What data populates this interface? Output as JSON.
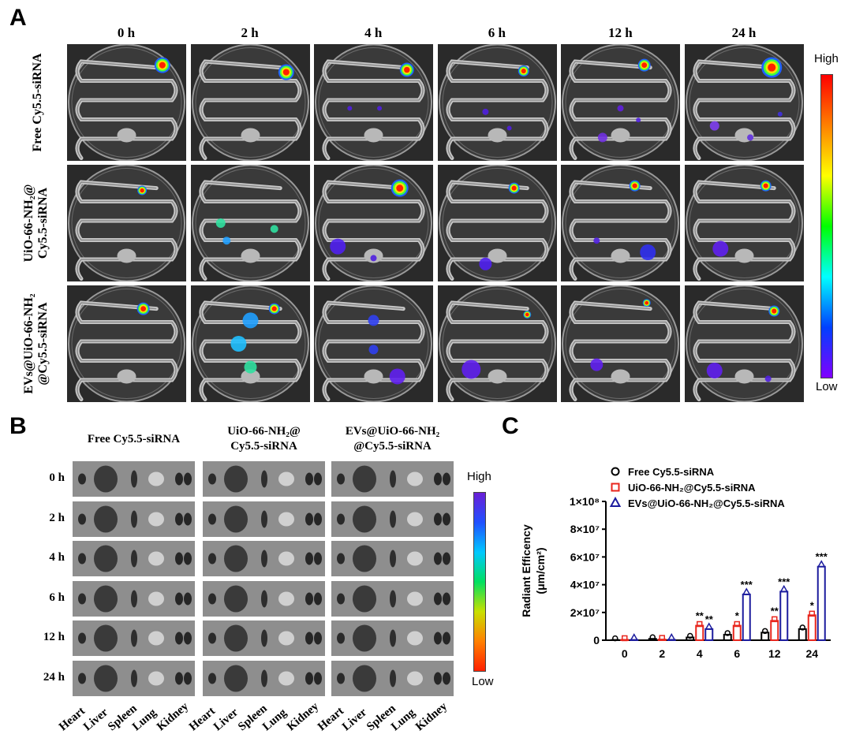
{
  "panel_a": {
    "letter": "A",
    "time_points": [
      "0 h",
      "2 h",
      "4 h",
      "6 h",
      "12 h",
      "24 h"
    ],
    "rows": [
      {
        "label_lines": [
          "Free Cy5.5-siRNA"
        ]
      },
      {
        "label_lines": [
          "UiO-66-NH₂@",
          "Cy5.5-siRNA"
        ]
      },
      {
        "label_lines": [
          "EVs@UiO-66-NH₂",
          "@Cy5.5-siRNA"
        ]
      }
    ],
    "colorbar": {
      "high": "High",
      "low": "Low"
    }
  },
  "panel_b": {
    "letter": "B",
    "groups": [
      {
        "label_lines": [
          "Free Cy5.5-siRNA"
        ]
      },
      {
        "label_lines": [
          "UiO-66-NH₂@",
          "Cy5.5-siRNA"
        ]
      },
      {
        "label_lines": [
          "EVs@UiO-66-NH₂",
          "@Cy5.5-siRNA"
        ]
      }
    ],
    "time_points": [
      "0 h",
      "2 h",
      "4 h",
      "6 h",
      "12 h",
      "24 h"
    ],
    "organs": [
      "Heart",
      "Liver",
      "Spleen",
      "Lung",
      "Kidney"
    ],
    "colorbar": {
      "high": "High",
      "low": "Low"
    }
  },
  "panel_c": {
    "letter": "C",
    "chart_data": {
      "type": "bar",
      "categories": [
        "0",
        "2",
        "4",
        "6",
        "12",
        "24"
      ],
      "ylabel_lines": [
        "Radiant Efficency",
        "(μm/cm²)"
      ],
      "ylim": [
        0,
        100000000
      ],
      "yticks": [
        "0",
        "2×10⁷",
        "4×10⁷",
        "6×10⁷",
        "8×10⁷",
        "1×10⁸"
      ],
      "series": [
        {
          "name": "Free Cy5.5-siRNA",
          "color": "#000000",
          "marker": "circle",
          "values": [
            200000,
            1000000,
            2000000,
            4000000,
            5500000,
            8000000
          ]
        },
        {
          "name": "UiO-66-NH₂@Cy5.5-siRNA",
          "color": "#e8261d",
          "marker": "square",
          "values": [
            300000,
            500000,
            10500000,
            10500000,
            14000000,
            18000000
          ]
        },
        {
          "name": "EVs@UiO-66-NH₂@Cy5.5-siRNA",
          "color": "#1c1c9e",
          "marker": "triangle",
          "values": [
            200000,
            300000,
            8000000,
            33000000,
            35000000,
            53000000
          ]
        }
      ],
      "significance": [
        {
          "category": "4",
          "series": 1,
          "text": "**"
        },
        {
          "category": "4",
          "series": 2,
          "text": "**"
        },
        {
          "category": "6",
          "series": 1,
          "text": "*"
        },
        {
          "category": "6",
          "series": 2,
          "text": "***"
        },
        {
          "category": "12",
          "series": 1,
          "text": "**"
        },
        {
          "category": "12",
          "series": 2,
          "text": "***"
        },
        {
          "category": "24",
          "series": 1,
          "text": "*"
        },
        {
          "category": "24",
          "series": 2,
          "text": "***"
        }
      ],
      "legend": "top-left"
    }
  }
}
